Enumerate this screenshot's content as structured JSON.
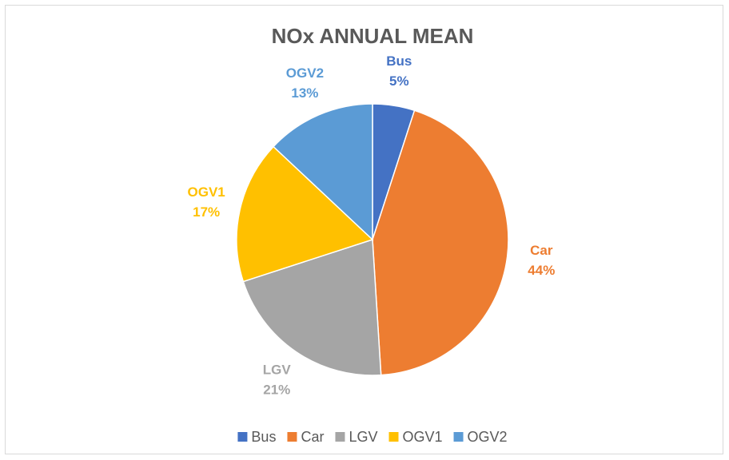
{
  "chart_data": {
    "type": "pie",
    "title": "NOx ANNUAL MEAN",
    "categories": [
      "Bus",
      "Car",
      "LGV",
      "OGV1",
      "OGV2"
    ],
    "values": [
      5,
      44,
      21,
      17,
      13
    ],
    "value_labels": [
      "5%",
      "44%",
      "21%",
      "17%",
      "13%"
    ],
    "colors": [
      "#4472c4",
      "#ed7d31",
      "#a5a5a5",
      "#ffc000",
      "#5b9bd5"
    ],
    "legend": "bottom"
  }
}
